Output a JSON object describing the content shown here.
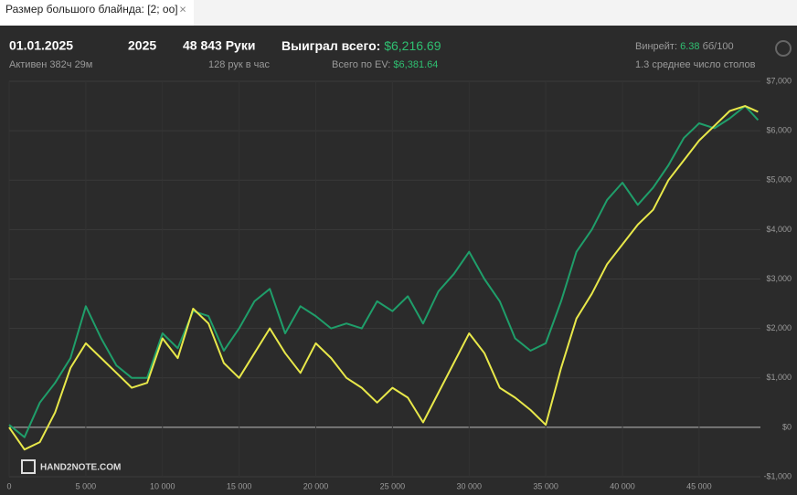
{
  "tab": {
    "title": "Размер большого блайнда: [2; oo]",
    "close": "×"
  },
  "header": {
    "date": "01.01.2025",
    "active": "Активен 382ч 29м",
    "year": "2025",
    "hands": "48 843 Руки",
    "hands_rate": "128 рук в час",
    "won_label": "Выиграл всего:",
    "won_value": "$6,216.69",
    "ev_label": "Всего по EV:",
    "ev_value": "$6,381.64",
    "winrate_label": "Винрейт:",
    "winrate_value": "6.38",
    "winrate_unit": "бб/100",
    "tables": "1.3 среднее число столов"
  },
  "watermark": "HAND2NOTE.COM",
  "chart_data": {
    "type": "line",
    "x": [
      0,
      1000,
      2000,
      3000,
      4000,
      5000,
      6000,
      7000,
      8000,
      9000,
      10000,
      11000,
      12000,
      13000,
      14000,
      15000,
      16000,
      17000,
      18000,
      19000,
      20000,
      21000,
      22000,
      23000,
      24000,
      25000,
      26000,
      27000,
      28000,
      29000,
      30000,
      31000,
      32000,
      33000,
      34000,
      35000,
      36000,
      37000,
      38000,
      39000,
      40000,
      41000,
      42000,
      43000,
      44000,
      45000,
      46000,
      47000,
      48000,
      48843
    ],
    "series": [
      {
        "color": "#1f9e6a",
        "values": [
          50,
          -200,
          500,
          900,
          1400,
          2450,
          1800,
          1250,
          1000,
          1000,
          1900,
          1600,
          2350,
          2250,
          1550,
          2000,
          2550,
          2800,
          1900,
          2450,
          2250,
          2000,
          2100,
          2000,
          2550,
          2350,
          2650,
          2100,
          2750,
          3100,
          3550,
          3000,
          2550,
          1800,
          1550,
          1700,
          2550,
          3550,
          4000,
          4600,
          4950,
          4500,
          4850,
          5300,
          5850,
          6150,
          6050,
          6250,
          6500,
          6217
        ]
      },
      {
        "color": "#e8e84a",
        "values": [
          0,
          -450,
          -300,
          300,
          1200,
          1700,
          1400,
          1100,
          800,
          900,
          1800,
          1400,
          2400,
          2100,
          1300,
          1000,
          1500,
          2000,
          1500,
          1100,
          1700,
          1400,
          1000,
          800,
          500,
          800,
          600,
          100,
          700,
          1300,
          1900,
          1500,
          800,
          600,
          350,
          50,
          1200,
          2200,
          2700,
          3300,
          3700,
          4100,
          4400,
          5000,
          5400,
          5800,
          6100,
          6400,
          6500,
          6382
        ]
      }
    ],
    "xlim": [
      0,
      49000
    ],
    "ylim": [
      -1000,
      7000
    ],
    "xticks": [
      0,
      {
        "value": 5000,
        "label": "5 000"
      },
      {
        "value": 10000,
        "label": "10 000"
      },
      {
        "value": 15000,
        "label": "15 000"
      },
      {
        "value": 20000,
        "label": "20 000"
      },
      {
        "value": 25000,
        "label": "25 000"
      },
      {
        "value": 30000,
        "label": "30 000"
      },
      {
        "value": 35000,
        "label": "35 000"
      },
      {
        "value": 40000,
        "label": "40 000"
      },
      {
        "value": 45000,
        "label": "45 000"
      }
    ],
    "yticks": [
      {
        "value": -1000,
        "label": "-$1,000"
      },
      {
        "value": 0,
        "label": "$0"
      },
      {
        "value": 1000,
        "label": "$1,000"
      },
      {
        "value": 2000,
        "label": "$2,000"
      },
      {
        "value": 3000,
        "label": "$3,000"
      },
      {
        "value": 4000,
        "label": "$4,000"
      },
      {
        "value": 5000,
        "label": "$5,000"
      },
      {
        "value": 6000,
        "label": "$6,000"
      },
      {
        "value": 7000,
        "label": "$7,000"
      }
    ],
    "grid": true
  }
}
